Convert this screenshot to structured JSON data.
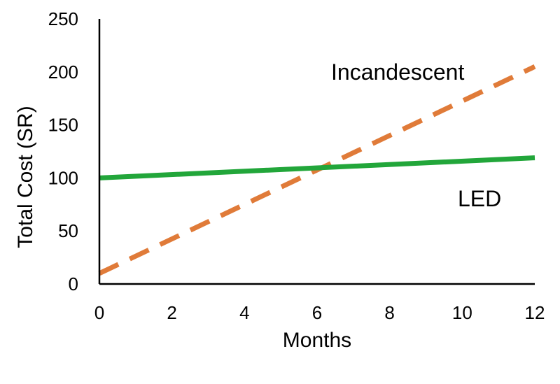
{
  "chart_data": {
    "type": "line",
    "title": "",
    "xlabel": "Months",
    "ylabel": "Total Cost (SR)",
    "xlim": [
      0,
      12
    ],
    "ylim": [
      0,
      250
    ],
    "xticks": [
      0,
      2,
      4,
      6,
      8,
      10,
      12
    ],
    "yticks": [
      0,
      50,
      100,
      150,
      200,
      250
    ],
    "grid": false,
    "legend": "none (series labeled directly on chart)",
    "series": [
      {
        "name": "Incandescent",
        "style": "dashed",
        "color": "#E07B39",
        "x": [
          0,
          12
        ],
        "y": [
          10,
          205
        ]
      },
      {
        "name": "LED",
        "style": "solid",
        "color": "#22A63A",
        "x": [
          0,
          12
        ],
        "y": [
          100,
          119
        ]
      }
    ]
  }
}
